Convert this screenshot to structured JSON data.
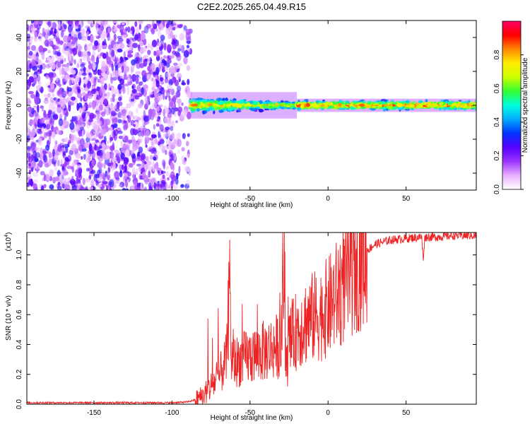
{
  "page": {
    "title": "C2E2.2025.265.04.49.R15"
  },
  "chart_data": [
    {
      "type": "heatmap",
      "title": "C2E2.2025.265.04.49.R15",
      "xlabel": "Height of straight line (km)",
      "ylabel": "Frequency (Hz)",
      "xlim": [
        -193,
        95
      ],
      "ylim": [
        -50,
        50
      ],
      "xticks": [
        -150,
        -100,
        -50,
        0,
        50
      ],
      "yticks": [
        -40,
        -20,
        0,
        20,
        40
      ],
      "colorbar": {
        "label": "Normalized spectral amplitude",
        "range": [
          0,
          1
        ],
        "ticks": [
          "0.0",
          "0.2",
          "0.4",
          "0.6",
          "0.8"
        ],
        "colormap": [
          "#ffffff",
          "#e8b0ff",
          "#9933ff",
          "#5500ff",
          "#0033ff",
          "#00aaff",
          "#00ffdd",
          "#33ff33",
          "#ccff00",
          "#ffee00",
          "#ff8800",
          "#ff0000",
          "#ff0066"
        ]
      },
      "regions": [
        {
          "x_from": -193,
          "x_to": -88,
          "description_values": {
            "f_from": -50,
            "f_to": 50,
            "amplitude_min": 0.05,
            "amplitude_max": 0.3
          }
        },
        {
          "x_from": -88,
          "x_to": -20,
          "description_values": {
            "f_center": 0,
            "f_halfwidth": 6,
            "amplitude_min": 0.3,
            "amplitude_max": 0.9
          }
        },
        {
          "x_from": -20,
          "x_to": 95,
          "description_values": {
            "f_center": 0,
            "f_halfwidth": 3,
            "amplitude_min": 0.5,
            "amplitude_max": 0.95
          }
        }
      ]
    },
    {
      "type": "line",
      "xlabel": "Height of straight line (km)",
      "ylabel": "SNR (10 * v/v)",
      "y_multiplier": "(x10",
      "y_multiplier_exp": "4",
      "y_multiplier_close": ")",
      "xlim": [
        -193,
        95
      ],
      "ylim": [
        0,
        1.15
      ],
      "xticks": [
        -150,
        -100,
        -50,
        0,
        50
      ],
      "yticks": [
        "0.0",
        "0.2",
        "0.4",
        "0.6",
        "0.8",
        "1.0"
      ],
      "color": "#ee2222",
      "series": [
        {
          "x": [
            -193,
            -100,
            -90,
            -85,
            -80,
            -75,
            -70,
            -65,
            -63,
            -62,
            -60,
            -55,
            -50,
            -45,
            -40,
            -35,
            -30,
            -28,
            -27,
            -25,
            -20,
            -15,
            -10,
            -5,
            0,
            5,
            10,
            15,
            20,
            25,
            30,
            40,
            50,
            60,
            61,
            62,
            70,
            80,
            95
          ],
          "y": [
            0.01,
            0.01,
            0.015,
            0.03,
            0.06,
            0.12,
            0.18,
            0.3,
            0.8,
            0.3,
            0.28,
            0.3,
            0.32,
            0.34,
            0.36,
            0.38,
            0.4,
            0.93,
            0.2,
            0.4,
            0.5,
            0.55,
            0.58,
            0.6,
            0.65,
            0.72,
            0.8,
            0.88,
            0.97,
            1.03,
            1.07,
            1.1,
            1.11,
            1.12,
            0.97,
            1.12,
            1.12,
            1.13,
            1.13
          ]
        }
      ]
    }
  ]
}
